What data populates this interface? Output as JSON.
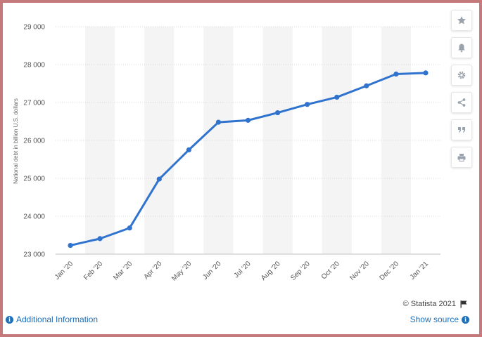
{
  "chart_data": {
    "type": "line",
    "categories": [
      "Jan '20",
      "Feb '20",
      "Mar '20",
      "Apr '20",
      "May '20",
      "Jun '20",
      "Jul '20",
      "Aug '20",
      "Sep '20",
      "Oct '20",
      "Nov '20",
      "Dec '20",
      "Jan '21"
    ],
    "values": [
      23230,
      23410,
      23690,
      24980,
      25750,
      26480,
      26530,
      26730,
      26950,
      27140,
      27440,
      27750,
      27780
    ],
    "ylabel": "National debt in billion U.S. dollars",
    "xlabel": "",
    "title": "",
    "ylim": [
      23000,
      29000
    ],
    "yticks": [
      23000,
      24000,
      25000,
      26000,
      27000,
      28000,
      29000
    ],
    "ytick_labels": [
      "23 000",
      "24 000",
      "25 000",
      "26 000",
      "27 000",
      "28 000",
      "29 000"
    ],
    "grid": true,
    "line_color": "#2f73cf",
    "band_color": "#f4f4f4"
  },
  "toolbar": [
    {
      "name": "favorite-icon",
      "icon": "star"
    },
    {
      "name": "notification-icon",
      "icon": "bell"
    },
    {
      "name": "settings-icon",
      "icon": "gear"
    },
    {
      "name": "share-icon",
      "icon": "share"
    },
    {
      "name": "cite-icon",
      "icon": "quote"
    },
    {
      "name": "print-icon",
      "icon": "print"
    }
  ],
  "footer": {
    "credit": "© Statista 2021",
    "additional_info": "Additional Information",
    "show_source": "Show source"
  },
  "colors": {
    "link": "#1d6fb8",
    "frame": "#c47a7a"
  }
}
